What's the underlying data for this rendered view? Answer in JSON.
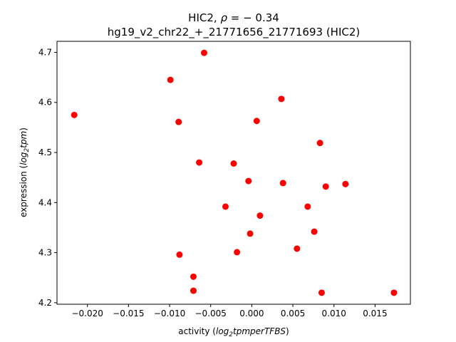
{
  "chart_data": {
    "type": "scatter",
    "title_prefix": "HIC2, ",
    "title_rho_symbol": "ρ",
    "title_rho_value": " = − 0.34",
    "subtitle": "hg19_v2_chr22_+_21771656_21771693 (HIC2)",
    "xlabel_prefix": "activity (",
    "xlabel_math": "log",
    "xlabel_sub": "2",
    "xlabel_rest": "tpmperTFBS",
    "xlabel_suffix": ")",
    "ylabel_prefix": "expression (",
    "ylabel_math": "log",
    "ylabel_sub": "2",
    "ylabel_rest": "tpm",
    "ylabel_suffix": ")",
    "xlim": [
      -0.0237,
      0.0193
    ],
    "ylim": [
      4.197,
      4.722
    ],
    "xticks": [
      {
        "value": -0.02,
        "label": "−0.020"
      },
      {
        "value": -0.015,
        "label": "−0.015"
      },
      {
        "value": -0.01,
        "label": "−0.010"
      },
      {
        "value": -0.005,
        "label": "−0.005"
      },
      {
        "value": 0.0,
        "label": "0.000"
      },
      {
        "value": 0.005,
        "label": "0.005"
      },
      {
        "value": 0.01,
        "label": "0.010"
      },
      {
        "value": 0.015,
        "label": "0.015"
      }
    ],
    "yticks": [
      {
        "value": 4.2,
        "label": "4.2"
      },
      {
        "value": 4.3,
        "label": "4.3"
      },
      {
        "value": 4.4,
        "label": "4.4"
      },
      {
        "value": 4.5,
        "label": "4.5"
      },
      {
        "value": 4.6,
        "label": "4.6"
      },
      {
        "value": 4.7,
        "label": "4.7"
      }
    ],
    "marker_color": "#ff0000",
    "points": [
      {
        "x": -0.0216,
        "y": 4.575
      },
      {
        "x": -0.0099,
        "y": 4.645
      },
      {
        "x": -0.0058,
        "y": 4.699
      },
      {
        "x": -0.0089,
        "y": 4.561
      },
      {
        "x": -0.0064,
        "y": 4.48
      },
      {
        "x": -0.0088,
        "y": 4.296
      },
      {
        "x": -0.0071,
        "y": 4.252
      },
      {
        "x": -0.0071,
        "y": 4.224
      },
      {
        "x": -0.0032,
        "y": 4.392
      },
      {
        "x": -0.0022,
        "y": 4.478
      },
      {
        "x": -0.0018,
        "y": 4.301
      },
      {
        "x": -0.0004,
        "y": 4.443
      },
      {
        "x": -0.0002,
        "y": 4.338
      },
      {
        "x": 0.0006,
        "y": 4.563
      },
      {
        "x": 0.001,
        "y": 4.374
      },
      {
        "x": 0.0036,
        "y": 4.607
      },
      {
        "x": 0.0038,
        "y": 4.439
      },
      {
        "x": 0.0055,
        "y": 4.308
      },
      {
        "x": 0.0068,
        "y": 4.392
      },
      {
        "x": 0.0076,
        "y": 4.342
      },
      {
        "x": 0.0083,
        "y": 4.519
      },
      {
        "x": 0.0085,
        "y": 4.22
      },
      {
        "x": 0.009,
        "y": 4.432
      },
      {
        "x": 0.0114,
        "y": 4.437
      },
      {
        "x": 0.0173,
        "y": 4.22
      }
    ]
  }
}
